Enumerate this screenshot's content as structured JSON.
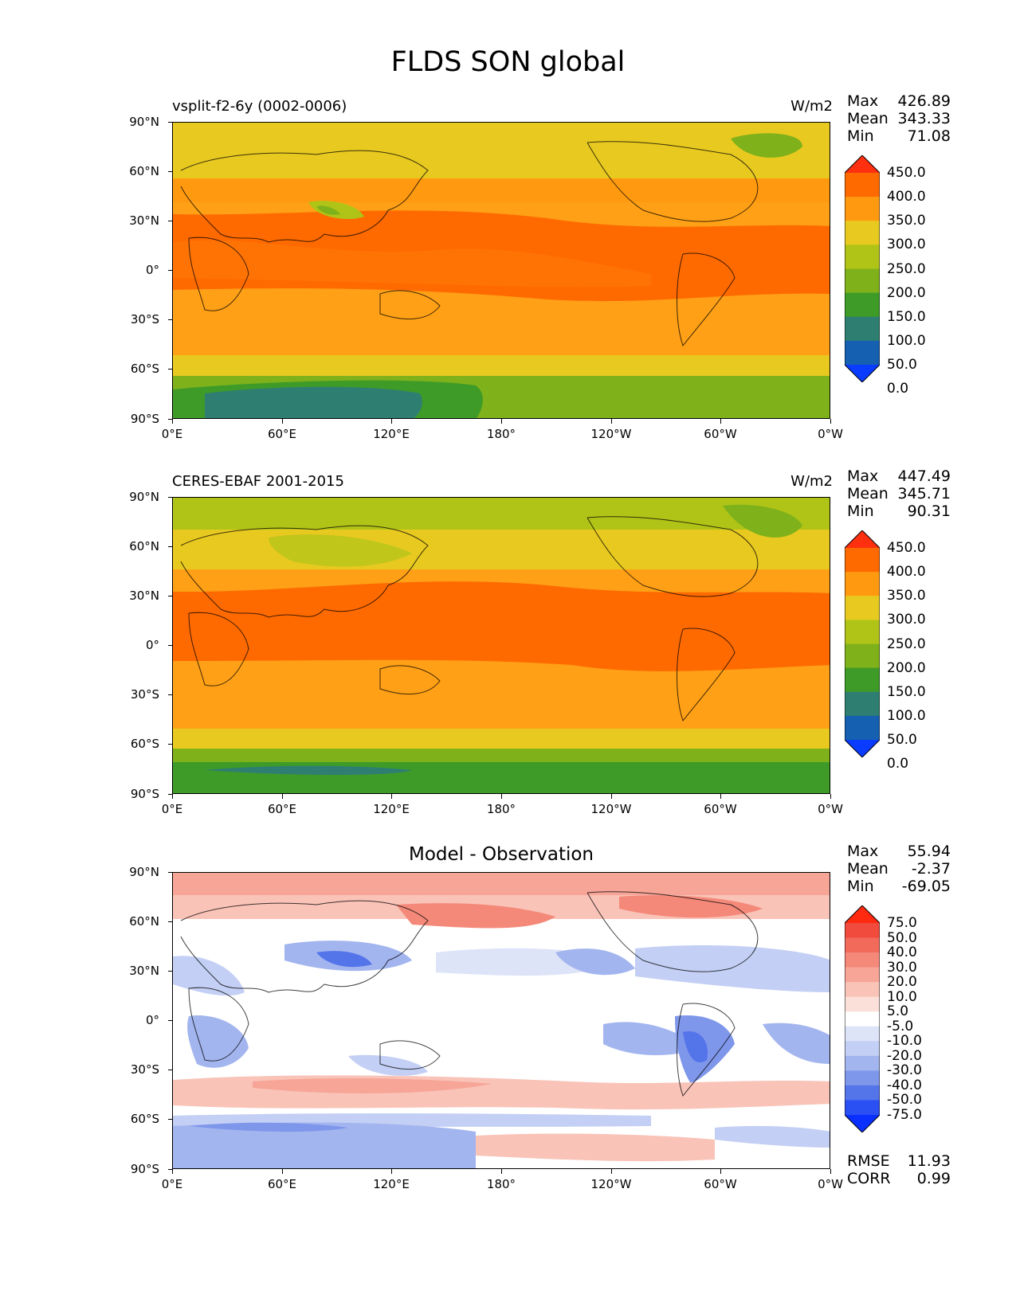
{
  "title": "FLDS SON global",
  "lat_ticks": [
    "90°N",
    "60°N",
    "30°N",
    "0°",
    "30°S",
    "60°S",
    "90°S"
  ],
  "lon_ticks": [
    "0°E",
    "60°E",
    "120°E",
    "180°",
    "120°W",
    "60°W",
    "0°W"
  ],
  "panels": [
    {
      "label": "vsplit-f2-6y (0002-0006)",
      "units": "W/m2",
      "stats": {
        "max_label": "Max",
        "max": "426.89",
        "mean_label": "Mean",
        "mean": "343.33",
        "min_label": "Min",
        "min": "71.08"
      },
      "colorbar": {
        "levels": [
          "450.0",
          "400.0",
          "350.0",
          "300.0",
          "250.0",
          "200.0",
          "150.0",
          "100.0",
          "50.0",
          "0.0"
        ],
        "colors": [
          "#ff3010",
          "#ff6a00",
          "#ff9a10",
          "#e8c920",
          "#b0c418",
          "#7fb11a",
          "#3e9b28",
          "#2e7e72",
          "#1560b0",
          "#0a3cff"
        ]
      }
    },
    {
      "label": "CERES-EBAF 2001-2015",
      "units": "W/m2",
      "stats": {
        "max_label": "Max",
        "max": "447.49",
        "mean_label": "Mean",
        "mean": "345.71",
        "min_label": "Min",
        "min": "90.31"
      },
      "colorbar": {
        "levels": [
          "450.0",
          "400.0",
          "350.0",
          "300.0",
          "250.0",
          "200.0",
          "150.0",
          "100.0",
          "50.0",
          "0.0"
        ],
        "colors": [
          "#ff3010",
          "#ff6a00",
          "#ff9a10",
          "#e8c920",
          "#b0c418",
          "#7fb11a",
          "#3e9b28",
          "#2e7e72",
          "#1560b0",
          "#0a3cff"
        ]
      }
    },
    {
      "title": "Model - Observation",
      "stats": {
        "max_label": "Max",
        "max": "55.94",
        "mean_label": "Mean",
        "mean": "-2.37",
        "min_label": "Min",
        "min": "-69.05"
      },
      "colorbar": {
        "levels": [
          "75.0",
          "50.0",
          "40.0",
          "30.0",
          "20.0",
          "10.0",
          "5.0",
          "-5.0",
          "-10.0",
          "-20.0",
          "-30.0",
          "-40.0",
          "-50.0",
          "-75.0"
        ],
        "colors": [
          "#ff2a10",
          "#f04b3c",
          "#f26a5a",
          "#f4897a",
          "#f7a597",
          "#f9c3b8",
          "#fbe0da",
          "#ffffff",
          "#dde4f8",
          "#c3cff4",
          "#a3b5ef",
          "#7f97ea",
          "#5474ea",
          "#2a4ff2",
          "#0a30ff"
        ]
      },
      "rmse_label": "RMSE",
      "rmse": "11.93",
      "corr_label": "CORR",
      "corr": "0.99"
    }
  ]
}
